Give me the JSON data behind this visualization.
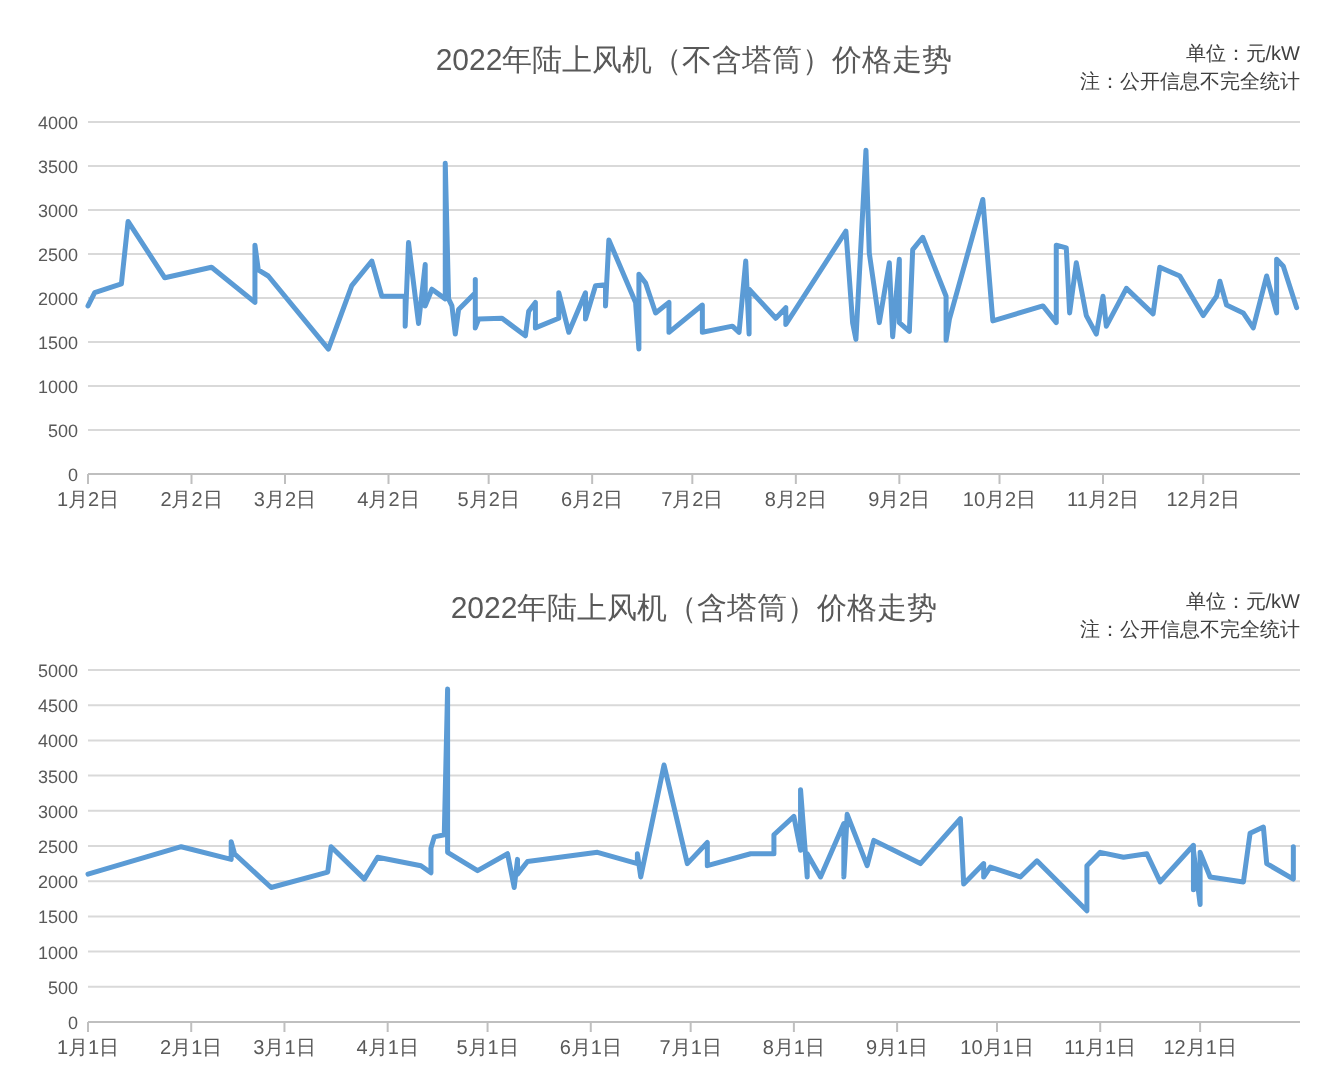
{
  "chart_data": [
    {
      "type": "line",
      "title": "2022年陆上风机（不含塔筒）价格走势",
      "annotations": [
        "单位：元/kW",
        "注：公开信息不完全统计"
      ],
      "grid": "y",
      "marker": "none",
      "line_style": "solid",
      "xlim": [
        "2022-01-02",
        "2022-12-31"
      ],
      "xticks": [
        {
          "value": "2022-01-02",
          "label": "1月2日"
        },
        {
          "value": "2022-02-02",
          "label": "2月2日"
        },
        {
          "value": "2022-03-02",
          "label": "3月2日"
        },
        {
          "value": "2022-04-02",
          "label": "4月2日"
        },
        {
          "value": "2022-05-02",
          "label": "5月2日"
        },
        {
          "value": "2022-06-02",
          "label": "6月2日"
        },
        {
          "value": "2022-07-02",
          "label": "7月2日"
        },
        {
          "value": "2022-08-02",
          "label": "8月2日"
        },
        {
          "value": "2022-09-02",
          "label": "9月2日"
        },
        {
          "value": "2022-10-02",
          "label": "10月2日"
        },
        {
          "value": "2022-11-02",
          "label": "11月2日"
        },
        {
          "value": "2022-12-02",
          "label": "12月2日"
        }
      ],
      "ylim": [
        0,
        4000
      ],
      "yticks": [
        0,
        500,
        1000,
        1500,
        2000,
        2500,
        3000,
        3500,
        4000
      ],
      "series": [
        {
          "color": "#5b9bd5",
          "x": [
            "2022-01-02",
            "2022-01-04",
            "2022-01-12",
            "2022-01-14",
            "2022-01-25",
            "2022-02-08",
            "2022-02-21",
            "2022-02-21",
            "2022-02-22",
            "2022-02-25",
            "2022-03-15",
            "2022-03-22",
            "2022-03-28",
            "2022-03-31",
            "2022-04-07",
            "2022-04-07",
            "2022-04-08",
            "2022-04-11",
            "2022-04-13",
            "2022-04-13",
            "2022-04-15",
            "2022-04-19",
            "2022-04-19",
            "2022-04-20",
            "2022-04-21",
            "2022-04-22",
            "2022-04-23",
            "2022-04-28",
            "2022-04-28",
            "2022-04-28",
            "2022-04-29",
            "2022-05-06",
            "2022-05-13",
            "2022-05-14",
            "2022-05-16",
            "2022-05-16",
            "2022-05-23",
            "2022-05-23",
            "2022-05-26",
            "2022-05-31",
            "2022-05-31",
            "2022-06-03",
            "2022-06-06",
            "2022-06-06",
            "2022-06-07",
            "2022-06-15",
            "2022-06-16",
            "2022-06-16",
            "2022-06-18",
            "2022-06-21",
            "2022-06-25",
            "2022-06-25",
            "2022-07-05",
            "2022-07-05",
            "2022-07-14",
            "2022-07-16",
            "2022-07-18",
            "2022-07-19",
            "2022-07-19",
            "2022-07-27",
            "2022-07-30",
            "2022-07-30",
            "2022-08-17",
            "2022-08-19",
            "2022-08-20",
            "2022-08-23",
            "2022-08-24",
            "2022-08-27",
            "2022-08-30",
            "2022-08-31",
            "2022-09-02",
            "2022-09-02",
            "2022-09-05",
            "2022-09-06",
            "2022-09-09",
            "2022-09-16",
            "2022-09-16",
            "2022-09-17",
            "2022-09-27",
            "2022-09-30",
            "2022-10-15",
            "2022-10-19",
            "2022-10-19",
            "2022-10-22",
            "2022-10-23",
            "2022-10-25",
            "2022-10-28",
            "2022-10-31",
            "2022-11-02",
            "2022-11-03",
            "2022-11-09",
            "2022-11-17",
            "2022-11-19",
            "2022-11-25",
            "2022-12-02",
            "2022-12-06",
            "2022-12-07",
            "2022-12-09",
            "2022-12-14",
            "2022-12-17",
            "2022-12-21",
            "2022-12-24",
            "2022-12-24",
            "2022-12-26",
            "2022-12-30"
          ],
          "values": [
            1910,
            2060,
            2160,
            2870,
            2230,
            2350,
            1950,
            2600,
            2320,
            2250,
            1420,
            2140,
            2420,
            2020,
            2020,
            1680,
            2630,
            1710,
            2380,
            1910,
            2100,
            1990,
            3530,
            1990,
            1910,
            1590,
            1870,
            2060,
            2210,
            1660,
            1760,
            1770,
            1570,
            1850,
            1950,
            1660,
            1770,
            2060,
            1610,
            2060,
            1760,
            2140,
            2150,
            1910,
            2660,
            1950,
            1420,
            2270,
            2170,
            1830,
            1950,
            1610,
            1920,
            1610,
            1680,
            1610,
            2420,
            1590,
            2100,
            1770,
            1890,
            1700,
            2760,
            1720,
            1530,
            3680,
            2510,
            1720,
            2400,
            1560,
            2440,
            1720,
            1620,
            2550,
            2690,
            2020,
            1520,
            1760,
            3120,
            1740,
            1910,
            1720,
            2600,
            2570,
            1830,
            2400,
            1800,
            1590,
            2020,
            1680,
            2110,
            1820,
            2350,
            2250,
            1800,
            2020,
            2190,
            1920,
            1830,
            1660,
            2250,
            1830,
            2440,
            2360,
            1890
          ]
        }
      ]
    },
    {
      "type": "line",
      "title": "2022年陆上风机（含塔筒）价格走势",
      "annotations": [
        "单位：元/kW",
        "注：公开信息不完全统计"
      ],
      "grid": "y",
      "marker": "none",
      "line_style": "solid",
      "xlim": [
        "2022-01-01",
        "2022-12-31"
      ],
      "xticks": [
        {
          "value": "2022-01-01",
          "label": "1月1日"
        },
        {
          "value": "2022-02-01",
          "label": "2月1日"
        },
        {
          "value": "2022-03-01",
          "label": "3月1日"
        },
        {
          "value": "2022-04-01",
          "label": "4月1日"
        },
        {
          "value": "2022-05-01",
          "label": "5月1日"
        },
        {
          "value": "2022-06-01",
          "label": "6月1日"
        },
        {
          "value": "2022-07-01",
          "label": "7月1日"
        },
        {
          "value": "2022-08-01",
          "label": "8月1日"
        },
        {
          "value": "2022-09-01",
          "label": "9月1日"
        },
        {
          "value": "2022-10-01",
          "label": "10月1日"
        },
        {
          "value": "2022-11-01",
          "label": "11月1日"
        },
        {
          "value": "2022-12-01",
          "label": "12月1日"
        }
      ],
      "ylim": [
        0,
        5000
      ],
      "yticks": [
        0,
        500,
        1000,
        1500,
        2000,
        2500,
        3000,
        3500,
        4000,
        4500,
        5000
      ],
      "series": [
        {
          "color": "#5b9bd5",
          "x": [
            "2022-01-01",
            "2022-01-29",
            "2022-02-13",
            "2022-02-13",
            "2022-02-14",
            "2022-02-25",
            "2022-03-14",
            "2022-03-15",
            "2022-03-25",
            "2022-03-29",
            "2022-04-11",
            "2022-04-14",
            "2022-04-14",
            "2022-04-15",
            "2022-04-18",
            "2022-04-19",
            "2022-04-19",
            "2022-04-28",
            "2022-05-07",
            "2022-05-09",
            "2022-05-10",
            "2022-05-10",
            "2022-05-13",
            "2022-06-03",
            "2022-06-15",
            "2022-06-15",
            "2022-06-16",
            "2022-06-23",
            "2022-06-30",
            "2022-07-06",
            "2022-07-06",
            "2022-07-19",
            "2022-07-26",
            "2022-07-26",
            "2022-08-01",
            "2022-08-03",
            "2022-08-03",
            "2022-08-05",
            "2022-08-05",
            "2022-08-09",
            "2022-08-16",
            "2022-08-16",
            "2022-08-17",
            "2022-08-23",
            "2022-08-25",
            "2022-08-31",
            "2022-09-08",
            "2022-09-20",
            "2022-09-21",
            "2022-09-27",
            "2022-09-27",
            "2022-09-29",
            "2022-10-08",
            "2022-10-13",
            "2022-10-28",
            "2022-10-28",
            "2022-11-01",
            "2022-11-08",
            "2022-11-15",
            "2022-11-19",
            "2022-11-29",
            "2022-11-29",
            "2022-11-29",
            "2022-12-01",
            "2022-12-01",
            "2022-12-04",
            "2022-12-14",
            "2022-12-16",
            "2022-12-20",
            "2022-12-21",
            "2022-12-29",
            "2022-12-29"
          ],
          "values": [
            2100,
            2490,
            2310,
            2560,
            2390,
            1910,
            2130,
            2490,
            2030,
            2340,
            2220,
            2120,
            2470,
            2630,
            2660,
            4730,
            2410,
            2150,
            2390,
            1910,
            2310,
            2100,
            2280,
            2410,
            2250,
            2390,
            2060,
            3650,
            2250,
            2550,
            2220,
            2390,
            2390,
            2660,
            2920,
            2440,
            3300,
            2060,
            2390,
            2060,
            2820,
            2060,
            2950,
            2220,
            2580,
            2440,
            2250,
            2890,
            1960,
            2250,
            2060,
            2200,
            2060,
            2290,
            1580,
            2220,
            2410,
            2340,
            2390,
            1990,
            2510,
            1880,
            2440,
            1670,
            2410,
            2060,
            1990,
            2680,
            2770,
            2250,
            2030,
            2490
          ]
        }
      ]
    }
  ]
}
